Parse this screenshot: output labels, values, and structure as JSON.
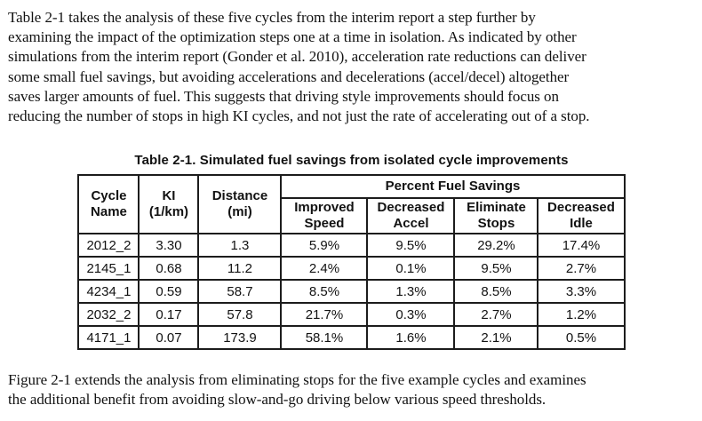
{
  "paragraphs": {
    "intro": {
      "lines": [
        "Table 2-1 takes the analysis of these five cycles from the interim report a step further by",
        "examining the impact of the optimization steps one at a time in isolation. As indicated by other",
        "simulations from the interim report (Gonder et al. 2010), acceleration rate reductions can deliver",
        "some small fuel savings, but avoiding accelerations and decelerations (accel/decel) altogether",
        "saves larger amounts of fuel. This suggests that driving style improvements should focus on",
        "reducing the number of stops in high KI cycles, and not just the rate of accelerating out of a stop."
      ]
    },
    "closing": {
      "lines": [
        "Figure 2-1 extends the analysis from eliminating stops for the five example cycles and examines",
        "the additional benefit from avoiding slow-and-go driving below various speed thresholds."
      ]
    }
  },
  "table": {
    "caption": "Table 2-1. Simulated fuel savings from isolated cycle improvements",
    "header": {
      "cycle": "Cycle\nName",
      "ki": "KI\n(1/km)",
      "distance": "Distance\n(mi)",
      "group": "Percent Fuel Savings",
      "improved_speed": "Improved\nSpeed",
      "decreased_accel": "Decreased\nAccel",
      "eliminate_stops": "Eliminate\nStops",
      "decreased_idle": "Decreased\nIdle"
    },
    "column_keys": [
      "cycle-name",
      "ki",
      "distance",
      "improved-speed",
      "decreased-accel",
      "eliminate-stops",
      "decreased-idle"
    ],
    "rows": [
      [
        "2012_2",
        "3.30",
        "1.3",
        "5.9%",
        "9.5%",
        "29.2%",
        "17.4%"
      ],
      [
        "2145_1",
        "0.68",
        "11.2",
        "2.4%",
        "0.1%",
        "9.5%",
        "2.7%"
      ],
      [
        "4234_1",
        "0.59",
        "58.7",
        "8.5%",
        "1.3%",
        "8.5%",
        "3.3%"
      ],
      [
        "2032_2",
        "0.17",
        "57.8",
        "21.7%",
        "0.3%",
        "2.7%",
        "1.2%"
      ],
      [
        "4171_1",
        "0.07",
        "173.9",
        "58.1%",
        "1.6%",
        "2.1%",
        "0.5%"
      ]
    ]
  },
  "colors": {
    "text": "#121212",
    "border": "#1c1c1c",
    "background": "#ffffff"
  }
}
